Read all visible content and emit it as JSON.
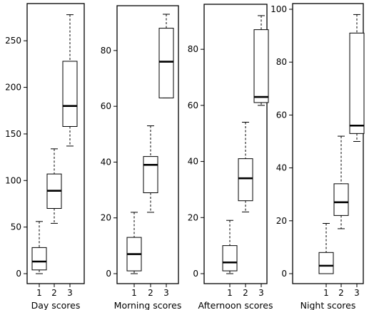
{
  "chart_data": [
    {
      "type": "boxplot",
      "xlabel": "Day scores",
      "categories": [
        "1",
        "2",
        "3"
      ],
      "ylim": [
        0,
        280
      ],
      "yticks": [
        0,
        50,
        100,
        150,
        200,
        250
      ],
      "boxes": [
        {
          "min": 0,
          "q1": 4,
          "median": 13,
          "q3": 28,
          "max": 56
        },
        {
          "min": 54,
          "q1": 70,
          "median": 89,
          "q3": 107,
          "max": 134
        },
        {
          "min": 137,
          "q1": 158,
          "median": 180,
          "q3": 228,
          "max": 278
        }
      ]
    },
    {
      "type": "boxplot",
      "xlabel": "Morning scores",
      "categories": [
        "1",
        "2",
        "3"
      ],
      "ylim": [
        0,
        93
      ],
      "yticks": [
        0,
        20,
        40,
        60,
        80
      ],
      "boxes": [
        {
          "min": 0,
          "q1": 1,
          "median": 7,
          "q3": 13,
          "max": 22
        },
        {
          "min": 22,
          "q1": 29,
          "median": 39,
          "q3": 42,
          "max": 53
        },
        {
          "min": 63,
          "q1": 63,
          "median": 76,
          "q3": 88,
          "max": 93
        }
      ]
    },
    {
      "type": "boxplot",
      "xlabel": "Afternoon scores",
      "categories": [
        "1",
        "2",
        "3"
      ],
      "ylim": [
        0,
        93
      ],
      "yticks": [
        0,
        20,
        40,
        60,
        80
      ],
      "boxes": [
        {
          "min": 0,
          "q1": 1,
          "median": 4,
          "q3": 10,
          "max": 19
        },
        {
          "min": 22,
          "q1": 26,
          "median": 34,
          "q3": 41,
          "max": 54
        },
        {
          "min": 60,
          "q1": 61,
          "median": 63,
          "q3": 87,
          "max": 92
        }
      ]
    },
    {
      "type": "boxplot",
      "xlabel": "Night scores",
      "categories": [
        "1",
        "2",
        "3"
      ],
      "ylim": [
        0,
        100
      ],
      "yticks": [
        0,
        20,
        40,
        60,
        80,
        100
      ],
      "boxes": [
        {
          "min": 0,
          "q1": 0,
          "median": 3,
          "q3": 8,
          "max": 19
        },
        {
          "min": 17,
          "q1": 22,
          "median": 27,
          "q3": 34,
          "max": 52
        },
        {
          "min": 50,
          "q1": 53,
          "median": 56,
          "q3": 91,
          "max": 98
        }
      ]
    }
  ]
}
